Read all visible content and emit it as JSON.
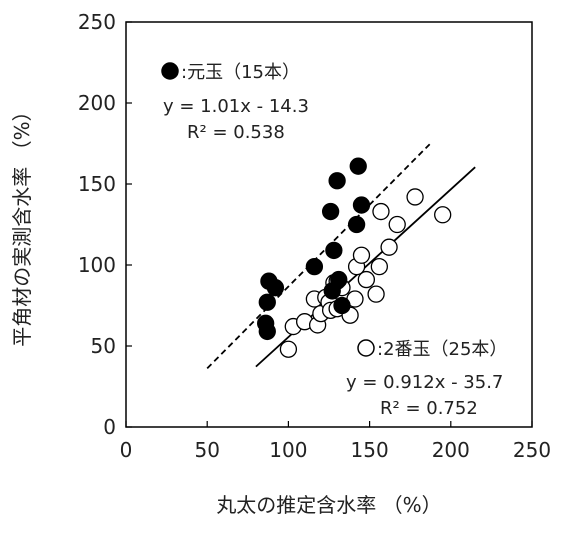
{
  "chart_data": {
    "type": "scatter",
    "xlabel": "丸太の推定含水率 （%）",
    "ylabel": "平角材の実測含水率 （%）",
    "xlim": [
      0,
      250
    ],
    "ylim": [
      0,
      250
    ],
    "xticks": [
      0,
      50,
      100,
      150,
      200,
      250
    ],
    "yticks": [
      0,
      50,
      100,
      150,
      200,
      250
    ],
    "grid": false,
    "series": [
      {
        "name": "元玉（15本）",
        "marker": "filled-circle",
        "color": "#000000",
        "points": [
          [
            86,
            64
          ],
          [
            87,
            59
          ],
          [
            87,
            77
          ],
          [
            88,
            90
          ],
          [
            92,
            86
          ],
          [
            116,
            99
          ],
          [
            126,
            133
          ],
          [
            128,
            109
          ],
          [
            130,
            152
          ],
          [
            131,
            91
          ],
          [
            133,
            75
          ],
          [
            142,
            125
          ],
          [
            143,
            161
          ],
          [
            145,
            137
          ],
          [
            127,
            84
          ]
        ],
        "fit": {
          "equation": "y = 1.01x - 14.3",
          "r2": "R² = 0.538",
          "line_style": "dashed",
          "x_range": [
            50,
            187
          ]
        }
      },
      {
        "name": "2番玉（25本）",
        "marker": "open-circle",
        "color": "#000000",
        "points": [
          [
            100,
            48
          ],
          [
            103,
            62
          ],
          [
            110,
            65
          ],
          [
            116,
            79
          ],
          [
            118,
            63
          ],
          [
            120,
            70
          ],
          [
            123,
            80
          ],
          [
            125,
            77
          ],
          [
            126,
            72
          ],
          [
            128,
            89
          ],
          [
            130,
            73
          ],
          [
            133,
            86
          ],
          [
            138,
            69
          ],
          [
            141,
            79
          ],
          [
            142,
            99
          ],
          [
            145,
            106
          ],
          [
            148,
            91
          ],
          [
            154,
            82
          ],
          [
            156,
            99
          ],
          [
            157,
            133
          ],
          [
            162,
            111
          ],
          [
            167,
            125
          ],
          [
            178,
            142
          ],
          [
            195,
            131
          ],
          [
            130,
            90
          ]
        ],
        "fit": {
          "equation": "y = 0.912x - 35.7",
          "r2": "R² = 0.752",
          "line_style": "solid",
          "x_range": [
            80,
            215
          ]
        }
      }
    ],
    "legend_text": {
      "series1": ":元玉（15本）",
      "series2": ":2番玉（25本）"
    }
  }
}
